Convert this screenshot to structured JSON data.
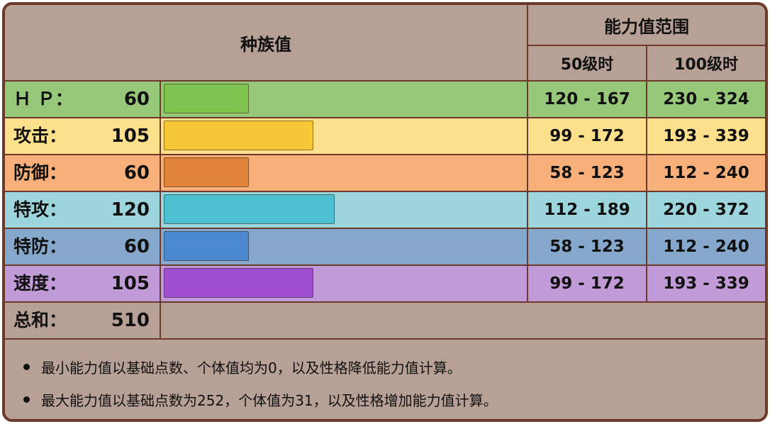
{
  "header": {
    "base_stats_title": "种族值",
    "stat_range_title": "能力值范围",
    "level50_label": "50级时",
    "level100_label": "100级时"
  },
  "stats": [
    {
      "label": "Ｈ Ｐ：",
      "value": 60,
      "bar_fraction": 0.2353,
      "range50": "120 - 167",
      "range100": "230 - 324",
      "row_color": "#97c87a",
      "label_bg": "#8fc56f",
      "bar_color": "#80c450"
    },
    {
      "label": "攻击：",
      "value": 105,
      "bar_fraction": 0.4118,
      "range50": "99 - 172",
      "range100": "193 - 339",
      "row_color": "#fde08c",
      "label_bg": "#fde08c",
      "bar_color": "#f6c838"
    },
    {
      "label": "防御：",
      "value": 60,
      "bar_fraction": 0.2353,
      "range50": "58 - 123",
      "range100": "112 - 240",
      "row_color": "#f8b07a",
      "label_bg": "#f8b07a",
      "bar_color": "#e0843a"
    },
    {
      "label": "特攻：",
      "value": 120,
      "bar_fraction": 0.4706,
      "range50": "112 - 189",
      "range100": "220 - 372",
      "row_color": "#9dd5dc",
      "label_bg": "#9dd5dc",
      "bar_color": "#4cc0d0"
    },
    {
      "label": "特防：",
      "value": 60,
      "bar_fraction": 0.2353,
      "range50": "58 - 123",
      "range100": "112 - 240",
      "row_color": "#86a8cc",
      "label_bg": "#86a8cc",
      "bar_color": "#4a88d0"
    },
    {
      "label": "速度：",
      "value": 105,
      "bar_fraction": 0.4118,
      "range50": "99 - 172",
      "range100": "193 - 339",
      "row_color": "#c19bd8",
      "label_bg": "#c19bd8",
      "bar_color": "#a050d0"
    }
  ],
  "total": {
    "label": "总和：",
    "value": 510
  },
  "notes": [
    "最小能力值以基础点数、个体值均为0，以及性格降低能力值计算。",
    "最大能力值以基础点数为252，个体值为31，以及性格增加能力值计算。"
  ],
  "colors": {
    "border": "#6b3a2a",
    "background": "#b7a096"
  }
}
